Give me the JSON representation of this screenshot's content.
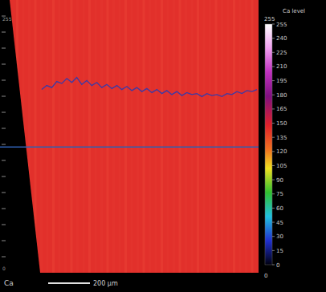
{
  "chart_data": {
    "type": "line",
    "title": "Ca",
    "ylim": [
      0,
      255
    ],
    "trace": {
      "color": "#3a3aa8",
      "values": [
        182,
        186,
        184,
        190,
        188,
        193,
        189,
        194,
        187,
        191,
        186,
        189,
        184,
        187,
        183,
        186,
        182,
        185,
        181,
        184,
        180,
        183,
        179,
        182,
        178,
        181,
        177,
        180,
        176,
        179,
        177,
        178,
        175,
        178,
        176,
        177,
        175,
        178,
        177,
        180,
        178,
        181,
        180,
        182
      ]
    },
    "baseline": {
      "color": "#2f5fb0",
      "value": 125
    },
    "colorbar": {
      "title": "Ca level",
      "range": [
        0,
        255
      ],
      "ticks": [
        255,
        240,
        225,
        210,
        195,
        180,
        165,
        150,
        135,
        120,
        105,
        90,
        75,
        60,
        45,
        30,
        15,
        0
      ]
    },
    "scale_bar": {
      "label": "200 μm"
    }
  }
}
